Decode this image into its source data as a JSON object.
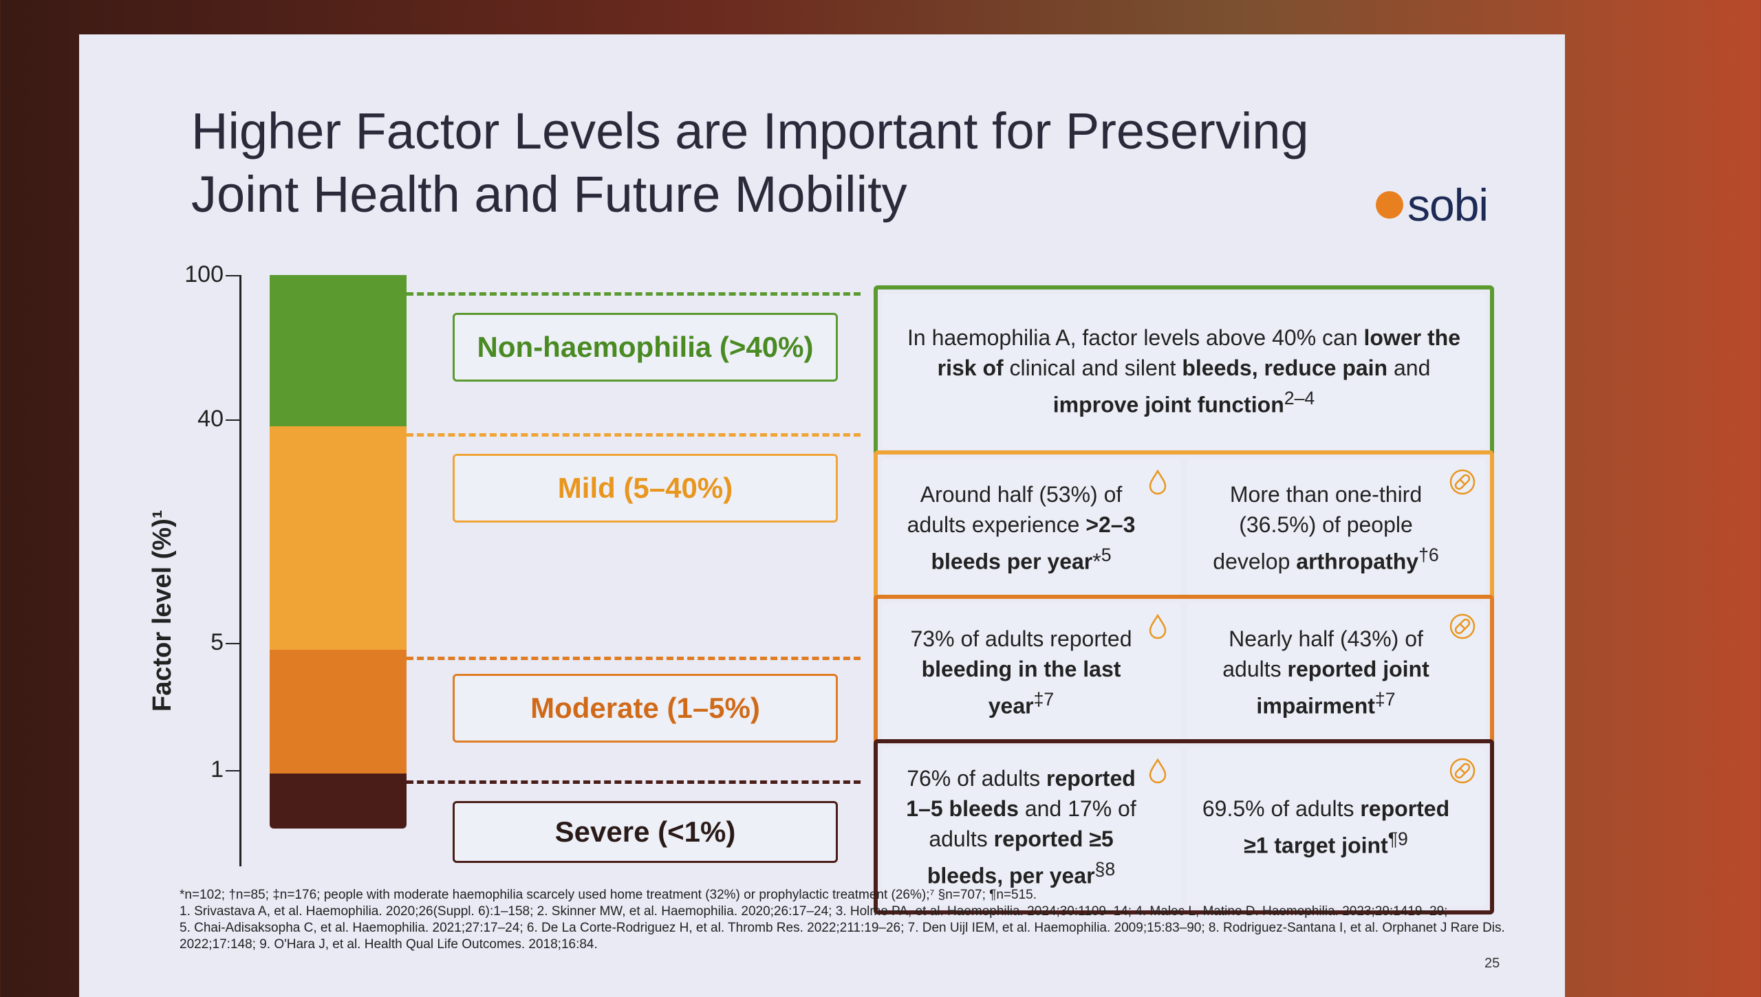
{
  "title": "Higher Factor Levels are Important for Preserving Joint Health and Future Mobility",
  "logo": "sobi",
  "axis": {
    "label": "Factor level (%)¹",
    "ticks": [
      "100",
      "40",
      "5",
      "1"
    ]
  },
  "colors": {
    "non": "#5a9a2e",
    "mild": "#f0a436",
    "moderate": "#e07c24",
    "severe": "#4a1d18"
  },
  "categories": [
    {
      "label": "Non-haemophilia (>40%)"
    },
    {
      "label": "Mild (5–40%)"
    },
    {
      "label": "Moderate (1–5%)"
    },
    {
      "label": "Severe (<1%)"
    }
  ],
  "boxes": {
    "non": {
      "html": "In haemophilia A, factor levels above 40% can <b>lower the risk of</b> clinical and silent <b>bleeds, reduce pain</b> and <b>improve joint function</b><sup>2–4</sup>"
    },
    "mild": [
      {
        "html": "Around half (53%) of adults experience <b>&gt;2–3 bleeds per year</b>*<sup>5</sup>",
        "icon": "droplet-icon"
      },
      {
        "html": "More than one-third (36.5%) of people develop <b>arthropathy</b><sup>†6</sup>",
        "icon": "joint-icon"
      }
    ],
    "moderate": [
      {
        "html": "73% of adults reported <b>bleeding in the last year</b><sup>‡7</sup>",
        "icon": "droplet-icon"
      },
      {
        "html": "Nearly half (43%) of adults <b>reported joint impairment</b><sup>‡7</sup>",
        "icon": "joint-icon"
      }
    ],
    "severe": [
      {
        "html": "76% of adults <b>reported 1–5 bleeds</b> and 17% of adults <b>reported ≥5 bleeds, per year</b><sup>§8</sup>",
        "icon": "droplet-icon"
      },
      {
        "html": "69.5% of adults <b>reported ≥1 target joint</b><sup>¶9</sup>",
        "icon": "joint-icon"
      }
    ]
  },
  "footnotes": [
    "*n=102; †n=85; ‡n=176; people with moderate haemophilia scarcely used home treatment (32%) or prophylactic treatment (26%);⁷ §n=707; ¶n=515.",
    "1. Srivastava A, et al. Haemophilia. 2020;26(Suppl. 6):1–158; 2. Skinner MW, et al. Haemophilia. 2020;26:17–24; 3. Holme PA, et al. Haemophilia. 2024;30:1109–14; 4. Malec L, Matino D. Haemophilia. 2023;29:1419–29;",
    "5. Chai-Adisaksopha C, et al. Haemophilia. 2021;27:17–24; 6. De La Corte-Rodriguez H, et al. Thromb Res. 2022;211:19–26; 7. Den Uijl IEM, et al. Haemophilia. 2009;15:83–90; 8. Rodriguez-Santana I, et al. Orphanet J Rare Dis.",
    "2022;17:148; 9. O'Hara J, et al. Health Qual Life Outcomes. 2018;16:84."
  ],
  "page_number": "25"
}
